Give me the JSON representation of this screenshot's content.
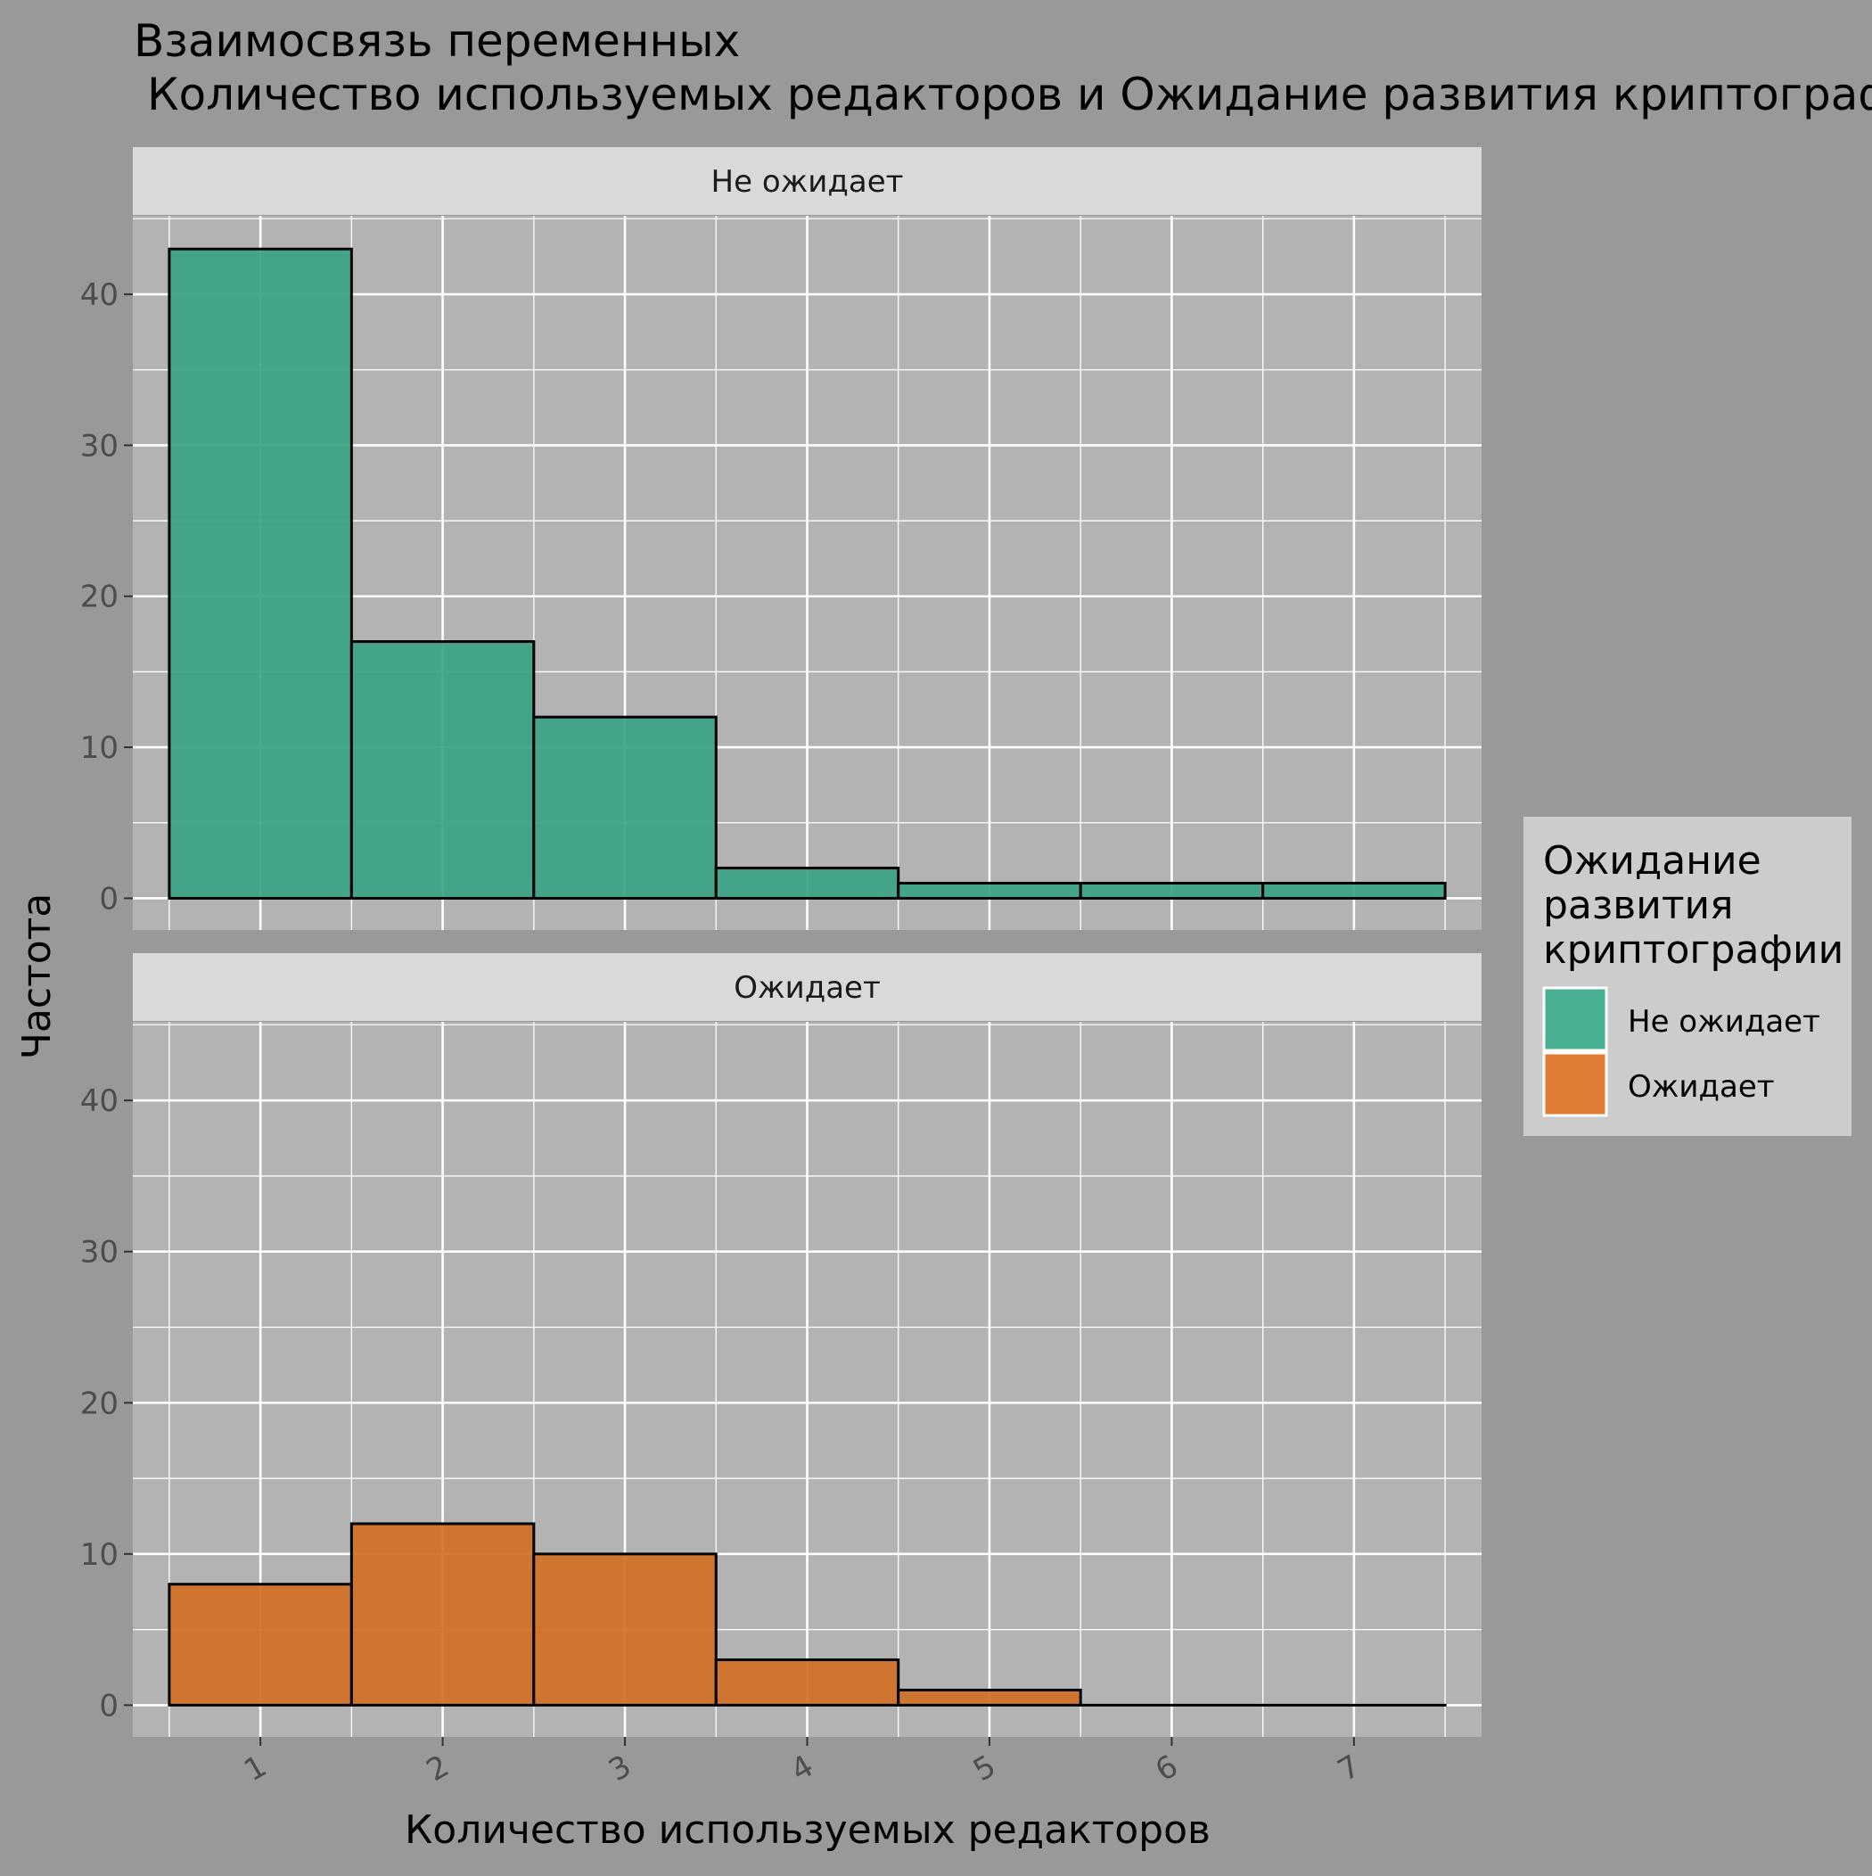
{
  "chart_data": {
    "type": "bar",
    "title_line1": "Взаимосвязь переменных",
    "title_line2": "Количество используемых редакторов и Ожидание развития криптограф",
    "xlabel": "Количество используемых редакторов",
    "ylabel": "Частота",
    "x_ticks": [
      "1",
      "2",
      "3",
      "4",
      "5",
      "6",
      "7"
    ],
    "categories": [
      1,
      2,
      3,
      4,
      5,
      6,
      7
    ],
    "ylim": [
      0,
      45
    ],
    "y_ticks": [
      0,
      10,
      20,
      30,
      40
    ],
    "grid": true,
    "legend": {
      "title_lines": [
        "Ожидание",
        "развития",
        "криптографии"
      ],
      "position": "right",
      "entries": [
        {
          "label": "Не ожидает",
          "color": "#47B092"
        },
        {
          "label": "Ожидает",
          "color": "#E07B33"
        }
      ]
    },
    "facets": [
      {
        "label": "Не ожидает",
        "color": "#3BA385",
        "values": [
          43,
          17,
          12,
          2,
          1,
          1,
          1
        ]
      },
      {
        "label": "Ожидает",
        "color": "#D37025",
        "values": [
          8,
          12,
          10,
          3,
          1,
          0,
          0
        ]
      }
    ],
    "series": [
      {
        "name": "Не ожидает",
        "values": [
          43,
          17,
          12,
          2,
          1,
          1,
          1
        ]
      },
      {
        "name": "Ожидает",
        "values": [
          8,
          12,
          10,
          3,
          1,
          0,
          0
        ]
      }
    ]
  }
}
